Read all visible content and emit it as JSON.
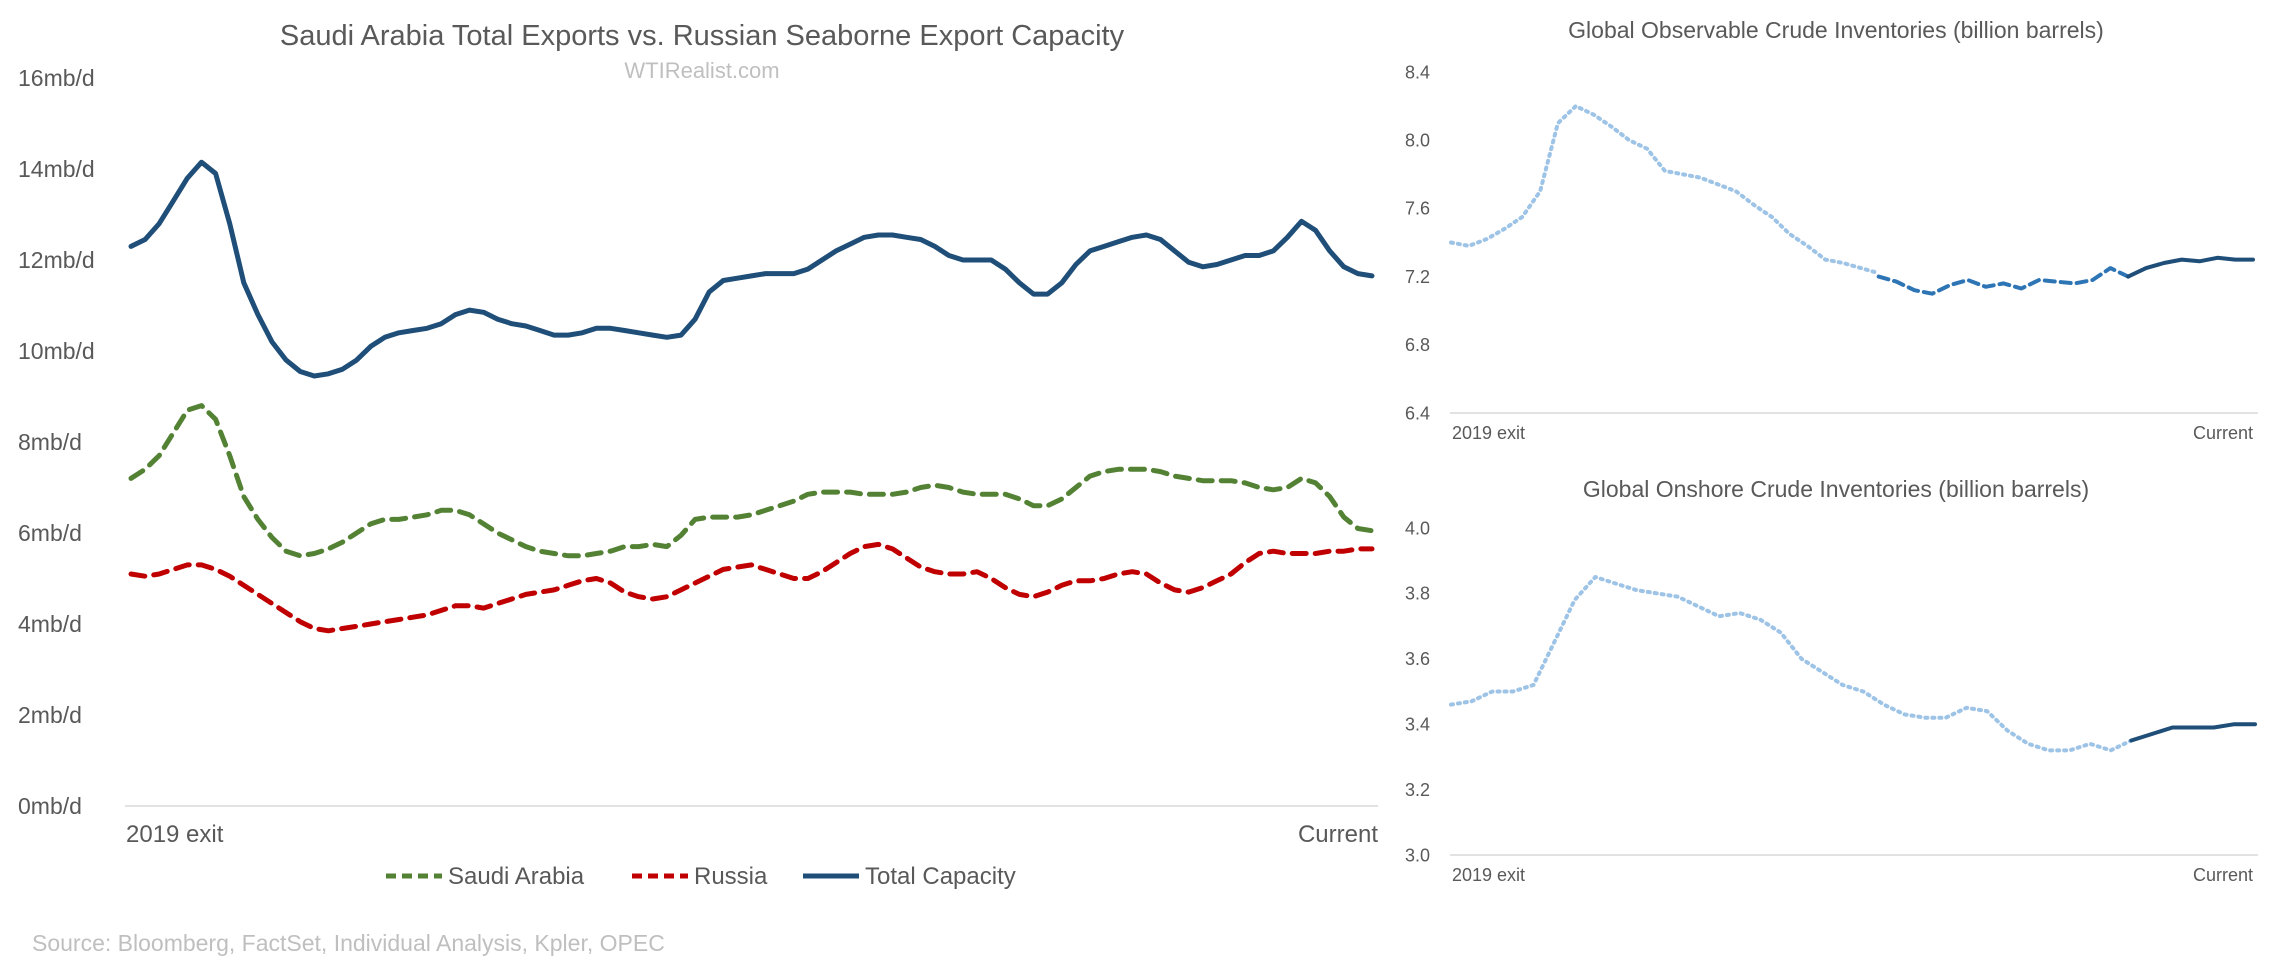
{
  "source_note": "Source: Bloomberg, FactSet, Individual Analysis, Kpler, OPEC",
  "chart_data": [
    {
      "type": "line",
      "title": "Saudi Arabia Total Exports vs. Russian Seaborne Export Capacity",
      "subtitle": "WTIRealist.com",
      "ylim": [
        0,
        16
      ],
      "y_ticks": [
        "0mb/d",
        "2mb/d",
        "4mb/d",
        "6mb/d",
        "8mb/d",
        "10mb/d",
        "12mb/d",
        "14mb/d",
        "16mb/d"
      ],
      "x_labels": [
        "2019 exit",
        "Current"
      ],
      "grid": false,
      "legend_placement": "bottom",
      "series": [
        {
          "name": "Saudi Arabia",
          "color": "#548235",
          "style": "dashed",
          "values": [
            7.2,
            7.4,
            7.7,
            8.2,
            8.7,
            8.8,
            8.5,
            7.7,
            6.8,
            6.3,
            5.9,
            5.6,
            5.5,
            5.55,
            5.65,
            5.8,
            6.0,
            6.2,
            6.3,
            6.3,
            6.35,
            6.4,
            6.5,
            6.5,
            6.4,
            6.2,
            6.0,
            5.85,
            5.7,
            5.6,
            5.55,
            5.5,
            5.5,
            5.55,
            5.6,
            5.7,
            5.7,
            5.75,
            5.7,
            5.95,
            6.3,
            6.35,
            6.35,
            6.35,
            6.4,
            6.5,
            6.6,
            6.7,
            6.85,
            6.9,
            6.9,
            6.9,
            6.85,
            6.85,
            6.85,
            6.9,
            7.0,
            7.05,
            7.0,
            6.9,
            6.85,
            6.85,
            6.85,
            6.75,
            6.6,
            6.6,
            6.75,
            7.0,
            7.25,
            7.35,
            7.4,
            7.4,
            7.4,
            7.35,
            7.25,
            7.2,
            7.15,
            7.15,
            7.15,
            7.1,
            7.0,
            6.95,
            7.0,
            7.2,
            7.1,
            6.8,
            6.35,
            6.1,
            6.05
          ]
        },
        {
          "name": "Russia",
          "color": "#c00000",
          "style": "dashed",
          "values": [
            5.1,
            5.05,
            5.1,
            5.2,
            5.3,
            5.3,
            5.2,
            5.05,
            4.85,
            4.65,
            4.45,
            4.25,
            4.05,
            3.9,
            3.85,
            3.9,
            3.95,
            4.0,
            4.05,
            4.1,
            4.15,
            4.2,
            4.3,
            4.4,
            4.4,
            4.35,
            4.45,
            4.55,
            4.65,
            4.7,
            4.75,
            4.85,
            4.95,
            5.0,
            4.9,
            4.7,
            4.6,
            4.55,
            4.6,
            4.75,
            4.9,
            5.05,
            5.2,
            5.25,
            5.3,
            5.2,
            5.1,
            5.0,
            5.0,
            5.15,
            5.35,
            5.55,
            5.7,
            5.75,
            5.65,
            5.45,
            5.25,
            5.15,
            5.1,
            5.1,
            5.15,
            5.0,
            4.8,
            4.65,
            4.6,
            4.7,
            4.85,
            4.95,
            4.95,
            5.0,
            5.1,
            5.15,
            5.1,
            4.9,
            4.75,
            4.7,
            4.8,
            4.95,
            5.1,
            5.35,
            5.55,
            5.6,
            5.55,
            5.55,
            5.55,
            5.6,
            5.6,
            5.65,
            5.65
          ]
        },
        {
          "name": "Total Capacity",
          "color": "#1f4e79",
          "style": "solid",
          "values": [
            12.3,
            12.45,
            12.8,
            13.3,
            13.8,
            14.15,
            13.9,
            12.8,
            11.5,
            10.8,
            10.2,
            9.8,
            9.55,
            9.45,
            9.5,
            9.6,
            9.8,
            10.1,
            10.3,
            10.4,
            10.45,
            10.5,
            10.6,
            10.8,
            10.9,
            10.85,
            10.7,
            10.6,
            10.55,
            10.45,
            10.35,
            10.35,
            10.4,
            10.5,
            10.5,
            10.45,
            10.4,
            10.35,
            10.3,
            10.35,
            10.7,
            11.3,
            11.55,
            11.6,
            11.65,
            11.7,
            11.7,
            11.7,
            11.8,
            12.0,
            12.2,
            12.35,
            12.5,
            12.55,
            12.55,
            12.5,
            12.45,
            12.3,
            12.1,
            12.0,
            12.0,
            12.0,
            11.8,
            11.5,
            11.25,
            11.25,
            11.5,
            11.9,
            12.2,
            12.3,
            12.4,
            12.5,
            12.55,
            12.45,
            12.2,
            11.95,
            11.85,
            11.9,
            12.0,
            12.1,
            12.1,
            12.2,
            12.5,
            12.85,
            12.65,
            12.2,
            11.85,
            11.7,
            11.65
          ]
        }
      ]
    },
    {
      "type": "line",
      "title": "Global Observable Crude Inventories (billion barrels)",
      "ylim": [
        6.4,
        8.4
      ],
      "y_ticks": [
        "6.4",
        "6.8",
        "7.2",
        "7.6",
        "8.0",
        "8.4"
      ],
      "x_labels": [
        "2019 exit",
        "Current"
      ],
      "grid": false,
      "series": [
        {
          "style": "dotted",
          "color": "#9dc3e6",
          "values": [
            7.4,
            7.38,
            7.42,
            7.48,
            7.55,
            7.7,
            8.1,
            8.2,
            8.15,
            8.08,
            8.0,
            7.95,
            7.82,
            7.8,
            7.78,
            7.74,
            7.7,
            7.62,
            7.55,
            7.45,
            7.38,
            7.3,
            7.28,
            7.25,
            7.22
          ]
        },
        {
          "style": "dashed",
          "color": "#2e75b6",
          "values": [
            7.2,
            7.17,
            7.12,
            7.1,
            7.15,
            7.18,
            7.14,
            7.16,
            7.13,
            7.18,
            7.17,
            7.16,
            7.18,
            7.25,
            7.2
          ]
        },
        {
          "style": "solid",
          "color": "#1f4e79",
          "values": [
            7.2,
            7.25,
            7.28,
            7.3,
            7.29,
            7.31,
            7.3,
            7.3
          ]
        }
      ]
    },
    {
      "type": "line",
      "title": "Global Onshore Crude Inventories (billion barrels)",
      "ylim": [
        3.0,
        4.0
      ],
      "y_ticks": [
        "3.0",
        "3.2",
        "3.4",
        "3.6",
        "3.8",
        "4.0"
      ],
      "x_labels": [
        "2019 exit",
        "Current"
      ],
      "grid": false,
      "series": [
        {
          "style": "dotted",
          "color": "#9dc3e6",
          "values": [
            3.46,
            3.47,
            3.5,
            3.5,
            3.52,
            3.65,
            3.78,
            3.85,
            3.83,
            3.81,
            3.8,
            3.79,
            3.76,
            3.73,
            3.74,
            3.72,
            3.68,
            3.6,
            3.56,
            3.52,
            3.5,
            3.46,
            3.43,
            3.42,
            3.42,
            3.45,
            3.44,
            3.38,
            3.34,
            3.32,
            3.32,
            3.34,
            3.32,
            3.35
          ]
        },
        {
          "style": "solid",
          "color": "#1f4e79",
          "values": [
            3.35,
            3.37,
            3.39,
            3.39,
            3.39,
            3.4,
            3.4
          ]
        }
      ]
    }
  ]
}
